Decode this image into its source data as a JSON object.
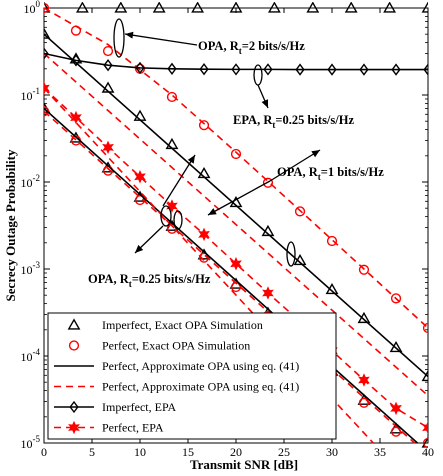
{
  "chart_data": {
    "type": "line",
    "xlabel": "Transmit SNR [dB]",
    "ylabel": "Secrecy Outage Probability",
    "xlim": [
      0,
      40
    ],
    "ylim": [
      1e-05,
      1
    ],
    "yscale": "log",
    "grid": false,
    "legend_position": "bottom-left",
    "x_ticks": [
      {
        "value": 0,
        "label": "0"
      },
      {
        "value": 5,
        "label": "5"
      },
      {
        "value": 10,
        "label": "10"
      },
      {
        "value": 15,
        "label": "15"
      },
      {
        "value": 20,
        "label": "20"
      },
      {
        "value": 25,
        "label": "25"
      },
      {
        "value": 30,
        "label": "30"
      },
      {
        "value": 35,
        "label": "35"
      },
      {
        "value": 40,
        "label": "40"
      }
    ],
    "y_ticks": [
      {
        "value": 1,
        "base": "10",
        "exp": "0"
      },
      {
        "value": 0.1,
        "base": "10",
        "exp": "-1"
      },
      {
        "value": 0.01,
        "base": "10",
        "exp": "-2"
      },
      {
        "value": 0.001,
        "base": "10",
        "exp": "-3"
      },
      {
        "value": 0.0001,
        "base": "10",
        "exp": "-4"
      },
      {
        "value": 1e-05,
        "base": "10",
        "exp": "-5"
      }
    ],
    "series": [
      {
        "name": "Imperfect, Exact OPA Simulation",
        "style": {
          "color": "#000000",
          "line": "none",
          "marker": "triangle"
        },
        "groups": [
          {
            "x": [
              0,
              4,
              8,
              12,
              16,
              20,
              24,
              28,
              32,
              36,
              40
            ],
            "y": [
              1,
              1,
              1,
              1,
              1,
              1,
              1,
              1,
              1,
              1,
              1
            ]
          },
          {
            "x": [
              0,
              3.33,
              6.67,
              10,
              13.33,
              16.67,
              20,
              23.33,
              26.67,
              30,
              33.33,
              36.67,
              40
            ],
            "y": [
              0.5,
              0.26,
              0.12,
              0.057,
              0.027,
              0.0125,
              0.0058,
              0.0027,
              0.00125,
              0.00058,
              0.00027,
              0.000125,
              5.8e-05
            ]
          },
          {
            "x": [
              0,
              3.33,
              6.67,
              10,
              13.33,
              16.67,
              20,
              23.33,
              26.67,
              30,
              33.33,
              36.67,
              40
            ],
            "y": [
              0.07,
              0.032,
              0.0145,
              0.0067,
              0.0031,
              0.00145,
              0.00067,
              0.00031,
              0.000145,
              6.7e-05,
              3.1e-05,
              1.45e-05,
              1e-05
            ]
          }
        ]
      },
      {
        "name": "Perfect, Exact OPA Simulation",
        "style": {
          "color": "#ff0000",
          "line": "none",
          "marker": "circle"
        },
        "groups": [
          {
            "x": [
              0,
              3.33,
              6.67,
              10,
              13.33,
              16.67,
              20,
              23.33,
              26.67,
              30,
              33.33,
              36.67,
              40
            ],
            "y": [
              1,
              0.55,
              0.32,
              0.2,
              0.095,
              0.045,
              0.021,
              0.0098,
              0.0046,
              0.0021,
              0.00098,
              0.00046,
              0.00021
            ]
          },
          {
            "x": [
              0,
              3.33,
              6.67,
              10,
              13.33,
              16.67,
              20,
              23.33,
              26.67,
              30,
              33.33,
              36.67,
              40
            ],
            "y": [
              0.065,
              0.03,
              0.0135,
              0.0062,
              0.0029,
              0.00135,
              0.00062,
              0.00029,
              0.000135,
              6.2e-05,
              2.9e-05,
              1.35e-05,
              1e-05
            ]
          }
        ]
      },
      {
        "name": "Perfect, Approximate OPA using eq. (41)",
        "style": {
          "color": "#000000",
          "line": "solid",
          "marker": "none"
        },
        "groups": [
          {
            "x": [
              0,
              40
            ],
            "y": [
              0.5,
              5.8e-05
            ]
          },
          {
            "x": [
              0,
              38.9
            ],
            "y": [
              0.07,
              1e-05
            ]
          }
        ]
      },
      {
        "name": "Perfect, Approximate OPA using eq. (41)",
        "style": {
          "color": "#ff0000",
          "line": "dashed",
          "marker": "none"
        },
        "groups": [
          {
            "x": [
              0,
              6.67,
              13.33,
              20,
              26.67,
              33.33,
              40
            ],
            "y": [
              1,
              0.38,
              0.1,
              0.022,
              0.0047,
              0.001,
              0.00021
            ]
          },
          {
            "x": [
              0,
              40
            ],
            "y": [
              0.3,
              3.5e-05
            ]
          },
          {
            "x": [
              0,
              34.3
            ],
            "y": [
              0.12,
              1e-05
            ]
          },
          {
            "x": [
              0,
              38.6
            ],
            "y": [
              0.065,
              1e-05
            ]
          }
        ]
      },
      {
        "name": "Imperfect, EPA",
        "style": {
          "color": "#000000",
          "line": "solid",
          "marker": "diamond"
        },
        "groups": [
          {
            "x": [
              0,
              3.33,
              6.67,
              10,
              13.33,
              16.67,
              20,
              23.33,
              26.67,
              30,
              33.33,
              36.67,
              40
            ],
            "y": [
              0.3,
              0.25,
              0.22,
              0.205,
              0.2,
              0.198,
              0.197,
              0.197,
              0.196,
              0.196,
              0.196,
              0.196,
              0.196
            ]
          }
        ]
      },
      {
        "name": "Perfect, EPA",
        "style": {
          "color": "#ff0000",
          "line": "dashed",
          "marker": "star"
        },
        "groups": [
          {
            "x": [
              0,
              3.33,
              6.67,
              10,
              13.33,
              16.67,
              20,
              23.33,
              26.67,
              30,
              33.33,
              36.67,
              40
            ],
            "y": [
              0.12,
              0.055,
              0.025,
              0.0115,
              0.0053,
              0.0025,
              0.00115,
              0.00053,
              0.00025,
              0.000115,
              5.3e-05,
              2.5e-05,
              1.5e-05
            ]
          }
        ]
      }
    ],
    "annotations": [
      {
        "label": "OPA, R",
        "sub": "t",
        "rest": "=2 bits/s/Hz"
      },
      {
        "label": "EPA, R",
        "sub": "t",
        "rest": "=0.25 bits/s/Hz"
      },
      {
        "label": "OPA, R",
        "sub": "t",
        "rest": "=1 bits/s/Hz"
      },
      {
        "label": "OPA, R",
        "sub": "t",
        "rest": "=0.25 bits/s/Hz"
      }
    ]
  }
}
